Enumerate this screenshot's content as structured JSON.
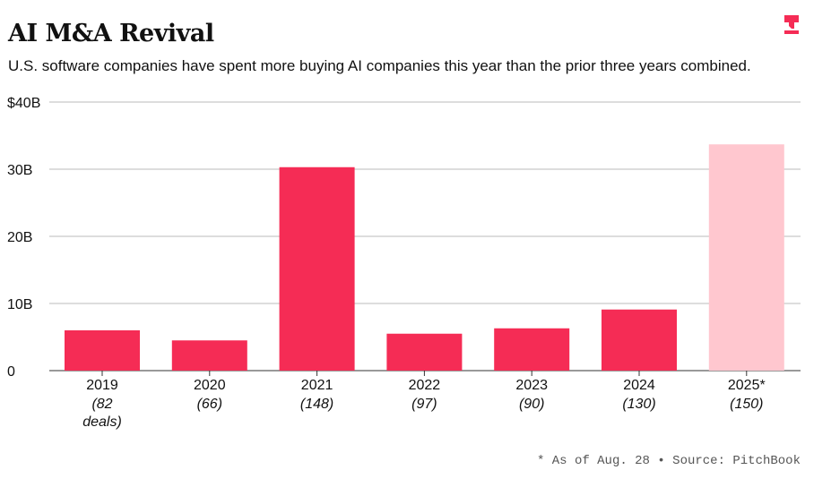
{
  "title": "AI M&A Revival",
  "subtitle": "U.S. software companies have spent more buying AI companies this year than the prior three years combined.",
  "note": "* As of Aug. 28 • Source: PitchBook",
  "logo": "T",
  "chart_data": {
    "type": "bar",
    "title": "AI M&A Revival",
    "xlabel": "",
    "ylabel": "",
    "ylim": [
      0,
      40
    ],
    "yticks": [
      0,
      10,
      20,
      30,
      40
    ],
    "ytick_labels": [
      "0",
      "10B",
      "20B",
      "30B",
      "$40B"
    ],
    "categories": [
      "2019",
      "2020",
      "2021",
      "2022",
      "2023",
      "2024",
      "2025*"
    ],
    "deal_labels": [
      [
        "(82",
        "deals)"
      ],
      [
        "(66)"
      ],
      [
        "(148)"
      ],
      [
        "(97)"
      ],
      [
        "(90)"
      ],
      [
        "(130)"
      ],
      [
        "(150)"
      ]
    ],
    "values": [
      6.0,
      4.5,
      30.3,
      5.5,
      6.3,
      9.1,
      33.7
    ],
    "colors": [
      "#f52c55",
      "#f52c55",
      "#f52c55",
      "#f52c55",
      "#f52c55",
      "#f52c55",
      "#ffc7cf"
    ],
    "grid": true
  }
}
